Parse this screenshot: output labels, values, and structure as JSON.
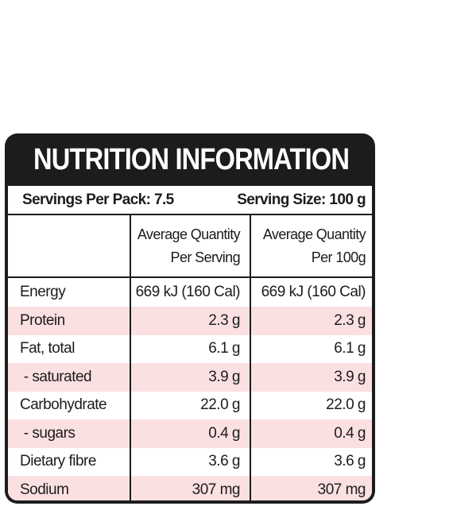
{
  "title": "NUTRITION INFORMATION",
  "servings": {
    "per_pack": "Servings Per Pack: 7.5",
    "size": "Serving Size: 100 g"
  },
  "columns": {
    "per_serving": [
      "Average Quantity",
      "Per Serving"
    ],
    "per_100g": [
      "Average Quantity",
      "Per 100g"
    ]
  },
  "rows": [
    {
      "name": "Energy",
      "per_serving": "669 kJ (160 Cal)",
      "per_100g": "669 kJ (160 Cal)",
      "shaded": false
    },
    {
      "name": "Protein",
      "per_serving": "2.3 g",
      "per_100g": "2.3 g",
      "shaded": true
    },
    {
      "name": "Fat, total",
      "per_serving": "6.1 g",
      "per_100g": "6.1 g",
      "shaded": false
    },
    {
      "name": " - saturated",
      "per_serving": "3.9 g",
      "per_100g": "3.9 g",
      "shaded": true
    },
    {
      "name": "Carbohydrate",
      "per_serving": "22.0 g",
      "per_100g": "22.0 g",
      "shaded": false
    },
    {
      "name": " - sugars",
      "per_serving": "0.4 g",
      "per_100g": "0.4 g",
      "shaded": true
    },
    {
      "name": "Dietary fibre",
      "per_serving": "3.6 g",
      "per_100g": "3.6 g",
      "shaded": false
    },
    {
      "name": "Sodium",
      "per_serving": "307 mg",
      "per_100g": "307 mg",
      "shaded": true
    }
  ],
  "colors": {
    "frame": "#1c1c1c",
    "shade": "#fbe0e2",
    "background": "#ffffff"
  }
}
